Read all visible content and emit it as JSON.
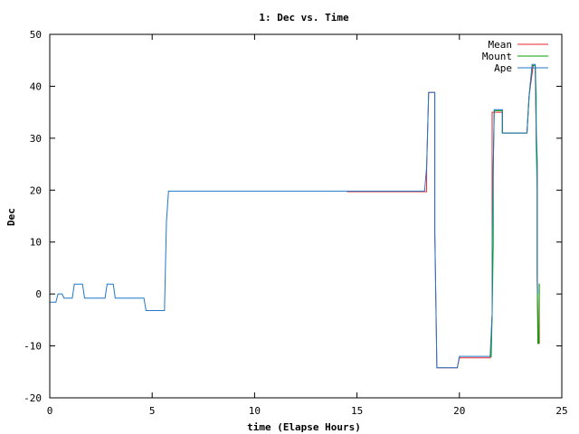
{
  "chart_data": {
    "type": "line",
    "title": "1: Dec vs. Time",
    "xlabel": "time (Elapse Hours)",
    "ylabel": "Dec",
    "xlim": [
      0,
      25
    ],
    "ylim": [
      -20,
      50
    ],
    "xticks": [
      0,
      5,
      10,
      15,
      20,
      25
    ],
    "yticks": [
      -20,
      -10,
      0,
      10,
      20,
      30,
      40,
      50
    ],
    "legend_position": "top-right",
    "grid": false,
    "series": [
      {
        "name": "Mean",
        "color": "#e8232a",
        "points": [
          [
            14.5,
            19.7
          ],
          [
            18.4,
            19.7
          ],
          [
            18.4,
            24.5
          ],
          [
            18.5,
            38.8
          ],
          [
            18.8,
            38.8
          ],
          [
            18.8,
            12.0
          ],
          [
            18.9,
            -14.2
          ],
          [
            19.9,
            -14.2
          ],
          [
            20.0,
            -12.3
          ],
          [
            21.5,
            -12.3
          ],
          [
            21.6,
            -4.0
          ],
          [
            21.6,
            10.0
          ],
          [
            21.6,
            24.0
          ],
          [
            21.6,
            35.0
          ],
          [
            22.1,
            35.0
          ],
          [
            22.1,
            31.0
          ],
          [
            23.3,
            31.0
          ],
          [
            23.4,
            38.0
          ],
          [
            23.6,
            44.0
          ],
          [
            23.7,
            44.0
          ],
          [
            23.75,
            30.0
          ],
          [
            23.8,
            25.0
          ],
          [
            23.8,
            2.5
          ],
          [
            23.85,
            -9.5
          ],
          [
            23.9,
            -9.5
          ],
          [
            23.9,
            2.0
          ]
        ]
      },
      {
        "name": "Mount",
        "color": "#00a000",
        "points": [
          [
            21.55,
            -12.2
          ],
          [
            21.6,
            -4.0
          ],
          [
            21.65,
            10.0
          ],
          [
            21.65,
            24.0
          ],
          [
            21.7,
            35.3
          ],
          [
            22.1,
            35.3
          ],
          [
            22.1,
            31.0
          ],
          [
            23.3,
            31.0
          ],
          [
            23.4,
            38.0
          ],
          [
            23.55,
            44.0
          ],
          [
            23.7,
            44.0
          ],
          [
            23.75,
            38.0
          ],
          [
            23.75,
            29.0
          ],
          [
            23.8,
            20.0
          ],
          [
            23.8,
            4.0
          ],
          [
            23.83,
            -9.5
          ],
          [
            23.88,
            -9.5
          ],
          [
            23.9,
            2.0
          ]
        ]
      },
      {
        "name": "Ape",
        "color": "#1f77c8",
        "points": [
          [
            0.0,
            -1.6
          ],
          [
            0.3,
            -1.6
          ],
          [
            0.4,
            0.0
          ],
          [
            0.6,
            0.0
          ],
          [
            0.7,
            -0.8
          ],
          [
            1.1,
            -0.8
          ],
          [
            1.2,
            1.9
          ],
          [
            1.6,
            1.9
          ],
          [
            1.7,
            -0.8
          ],
          [
            2.7,
            -0.8
          ],
          [
            2.8,
            1.9
          ],
          [
            3.1,
            1.9
          ],
          [
            3.2,
            -0.8
          ],
          [
            4.6,
            -0.8
          ],
          [
            4.7,
            -3.2
          ],
          [
            5.6,
            -3.2
          ],
          [
            5.7,
            14.0
          ],
          [
            5.8,
            19.8
          ],
          [
            18.3,
            19.8
          ],
          [
            18.4,
            24.5
          ],
          [
            18.5,
            38.8
          ],
          [
            18.8,
            38.8
          ],
          [
            18.8,
            12.0
          ],
          [
            18.9,
            -14.2
          ],
          [
            19.9,
            -14.2
          ],
          [
            20.0,
            -12.0
          ],
          [
            21.5,
            -12.0
          ],
          [
            21.6,
            -4.0
          ],
          [
            21.6,
            10.0
          ],
          [
            21.65,
            24.0
          ],
          [
            21.7,
            35.5
          ],
          [
            22.1,
            35.5
          ],
          [
            22.1,
            31.0
          ],
          [
            23.3,
            31.0
          ],
          [
            23.4,
            38.0
          ],
          [
            23.55,
            44.2
          ],
          [
            23.7,
            44.2
          ],
          [
            23.75,
            32.0
          ],
          [
            23.8,
            26.0
          ],
          [
            23.8,
            4.0
          ],
          [
            23.82,
            0.0
          ]
        ]
      }
    ]
  }
}
